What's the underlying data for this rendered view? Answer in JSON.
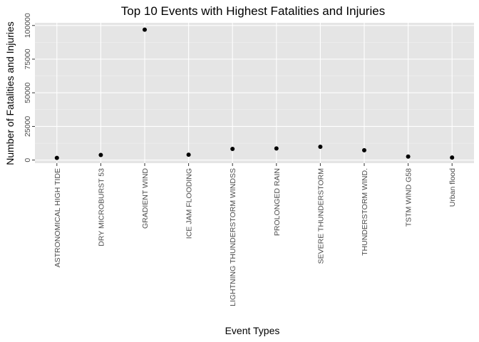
{
  "chart_data": {
    "type": "scatter",
    "title": "Top 10 Events with Highest Fatalities and Injuries",
    "xlabel": "Event Types",
    "ylabel": "Number of Fatalities and Injuries",
    "categories": [
      "ASTRONOMICAL HIGH TIDE",
      "DRY MICROBURST 53",
      "GRADIENT WIND",
      "ICE JAM FLOODING",
      "LIGHTNING THUNDERSTORM WINDSS",
      "PROLONGED RAIN",
      "SEVERE THUNDERSTORM",
      "THUNDERSTORM WIND.",
      "TSTM WIND G58",
      "Urban flood"
    ],
    "values": [
      1600,
      3800,
      96900,
      4000,
      8300,
      8600,
      9900,
      7300,
      2600,
      1900
    ],
    "y_ticks": [
      0,
      25000,
      50000,
      75000,
      100000
    ],
    "ylim": [
      -2300,
      102000
    ],
    "grid": true,
    "legend": "none",
    "colors": {
      "panel_background": "#e5e5e5",
      "grid_major": "#ffffff",
      "grid_minor": "#f2f2f2",
      "point": "#000000",
      "tick_text": "#4d4d4d"
    }
  }
}
